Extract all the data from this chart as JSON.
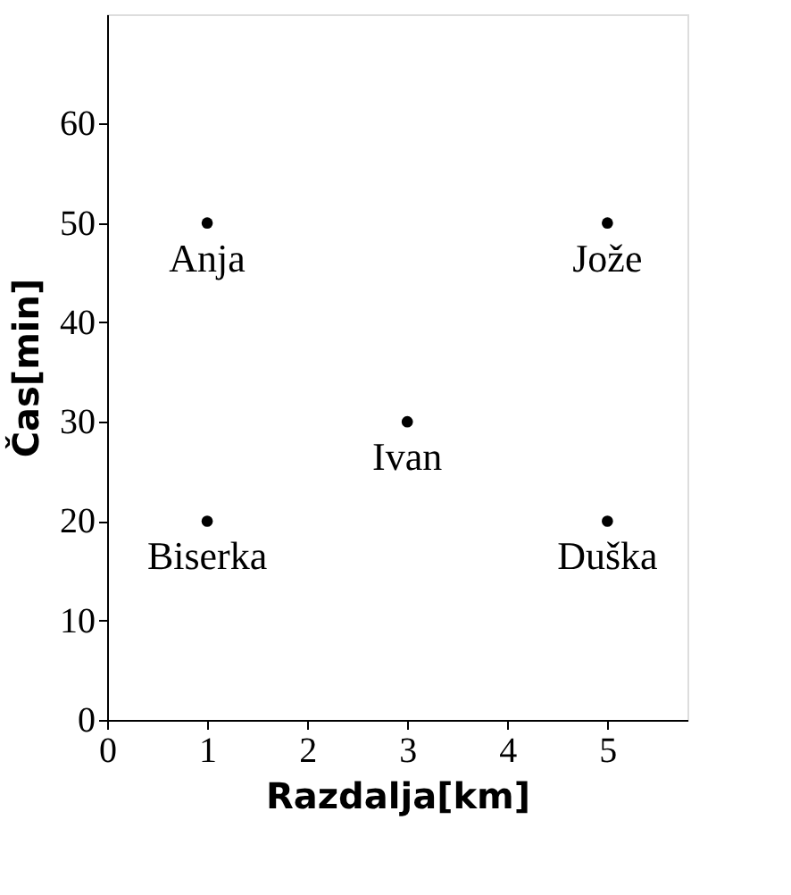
{
  "chart_data": {
    "type": "scatter",
    "xlabel": "Razdalja[km]",
    "ylabel": "Čas[min]",
    "x": [
      1,
      5,
      3,
      1,
      5
    ],
    "series": [
      {
        "color": "#000000",
        "values": [
          50,
          50,
          30,
          20,
          20
        ]
      }
    ],
    "annotations": [
      {
        "text": "Anja",
        "x": 1,
        "y": 50
      },
      {
        "text": "Jože",
        "x": 5,
        "y": 50
      },
      {
        "text": "Ivan",
        "x": 3,
        "y": 30
      },
      {
        "text": "Biserka",
        "x": 1,
        "y": 20
      },
      {
        "text": "Duška",
        "x": 5,
        "y": 20
      }
    ],
    "xlim": [
      0,
      5.8
    ],
    "xticks": [
      0,
      1,
      2,
      3,
      4,
      5
    ],
    "ylim": [
      0,
      71
    ],
    "yticks": [
      0,
      10,
      20,
      30,
      40,
      50,
      60
    ],
    "grid": false,
    "marker": "circle"
  }
}
